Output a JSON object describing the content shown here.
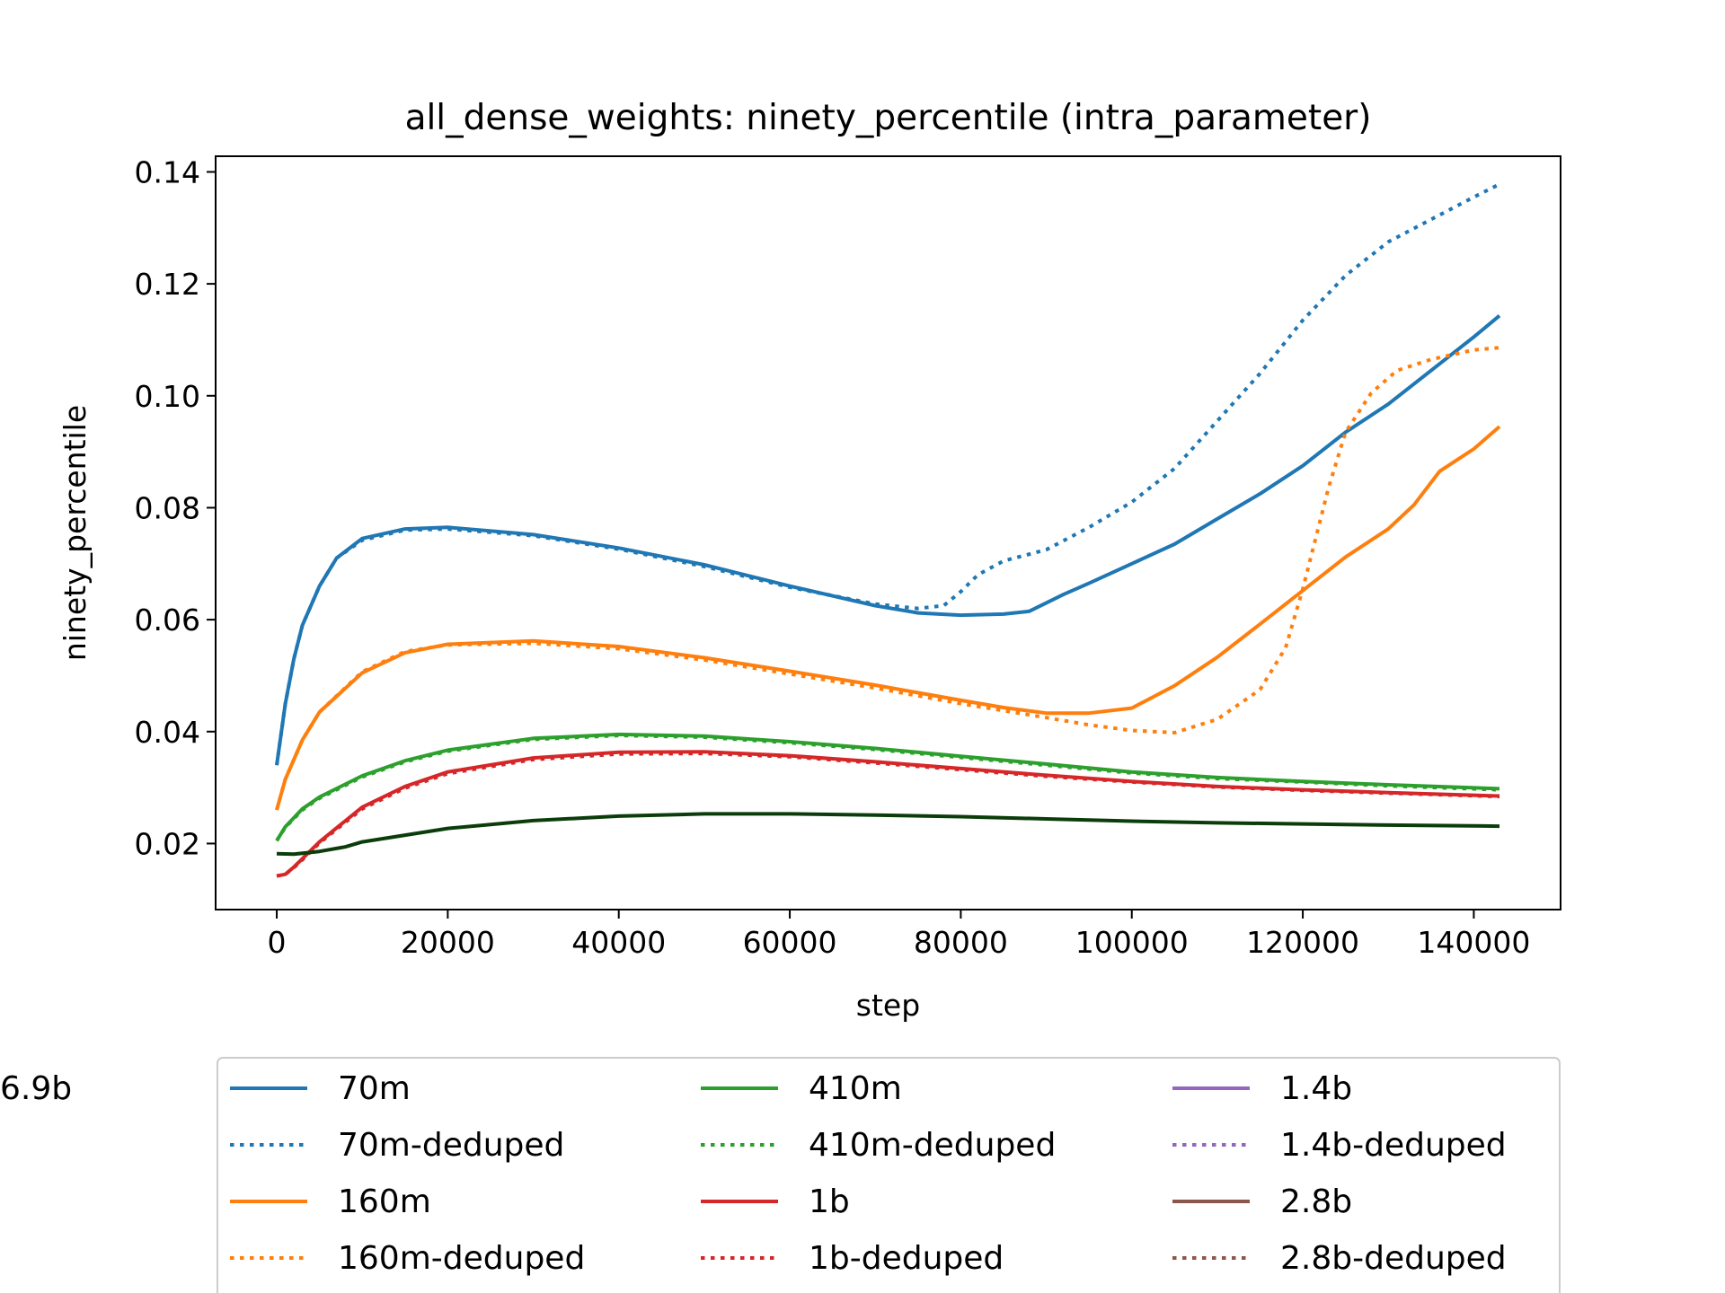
{
  "chart_data": {
    "type": "line",
    "title": "all_dense_weights: ninety_percentile (intra_parameter)",
    "xlabel": "step",
    "ylabel": "ninety_percentile",
    "xlim": [
      -7150,
      150150
    ],
    "ylim": [
      0.0082,
      0.1428
    ],
    "xticks": [
      0,
      20000,
      40000,
      60000,
      80000,
      100000,
      120000,
      140000
    ],
    "xtick_labels": [
      "0",
      "20000",
      "40000",
      "60000",
      "80000",
      "100000",
      "120000",
      "140000"
    ],
    "yticks": [
      0.02,
      0.04,
      0.06,
      0.08,
      0.1,
      0.12,
      0.14
    ],
    "ytick_labels": [
      "0.02",
      "0.04",
      "0.06",
      "0.08",
      "0.10",
      "0.12",
      "0.14"
    ],
    "grid": false,
    "legend_position": "below",
    "series": [
      {
        "name": "70m",
        "color": "#1f77b4",
        "style": "solid",
        "x": [
          0,
          1000,
          2000,
          3000,
          5000,
          7000,
          10000,
          15000,
          20000,
          30000,
          40000,
          50000,
          60000,
          70000,
          75000,
          80000,
          85000,
          88000,
          90000,
          92000,
          95000,
          100000,
          105000,
          110000,
          115000,
          120000,
          125000,
          130000,
          135000,
          140000,
          143000
        ],
        "y": [
          0.034,
          0.045,
          0.053,
          0.059,
          0.066,
          0.071,
          0.0745,
          0.0762,
          0.0765,
          0.0752,
          0.0728,
          0.0698,
          0.066,
          0.0625,
          0.0612,
          0.0608,
          0.061,
          0.0615,
          0.063,
          0.0645,
          0.0665,
          0.07,
          0.0735,
          0.078,
          0.0825,
          0.0875,
          0.0935,
          0.0985,
          0.1045,
          0.1105,
          0.1143
        ]
      },
      {
        "name": "70m-deduped",
        "color": "#1f77b4",
        "style": "dotted",
        "x": [
          0,
          1000,
          2000,
          3000,
          5000,
          7000,
          10000,
          15000,
          20000,
          30000,
          40000,
          50000,
          60000,
          70000,
          75000,
          78000,
          80000,
          82000,
          85000,
          90000,
          95000,
          100000,
          105000,
          110000,
          115000,
          120000,
          125000,
          130000,
          135000,
          140000,
          143000
        ],
        "y": [
          0.034,
          0.045,
          0.053,
          0.059,
          0.066,
          0.071,
          0.0742,
          0.076,
          0.0762,
          0.075,
          0.0726,
          0.0695,
          0.0658,
          0.0628,
          0.062,
          0.0625,
          0.065,
          0.068,
          0.0705,
          0.0725,
          0.0765,
          0.081,
          0.087,
          0.0955,
          0.104,
          0.1135,
          0.1215,
          0.1275,
          0.1315,
          0.1355,
          0.1378
        ]
      },
      {
        "name": "160m",
        "color": "#ff7f0e",
        "style": "solid",
        "x": [
          0,
          1000,
          3000,
          5000,
          10000,
          15000,
          20000,
          30000,
          40000,
          50000,
          60000,
          70000,
          80000,
          85000,
          90000,
          95000,
          100000,
          105000,
          110000,
          115000,
          120000,
          125000,
          130000,
          133000,
          136000,
          140000,
          143000
        ],
        "y": [
          0.026,
          0.0315,
          0.0385,
          0.0435,
          0.0505,
          0.0541,
          0.0556,
          0.0562,
          0.0552,
          0.0532,
          0.0508,
          0.0483,
          0.0456,
          0.0443,
          0.0433,
          0.0433,
          0.0442,
          0.0482,
          0.0533,
          0.0592,
          0.0652,
          0.0712,
          0.0762,
          0.0805,
          0.0865,
          0.0905,
          0.0945
        ]
      },
      {
        "name": "160m-deduped",
        "color": "#ff7f0e",
        "style": "dotted",
        "x": [
          0,
          1000,
          3000,
          5000,
          10000,
          15000,
          20000,
          30000,
          40000,
          50000,
          60000,
          70000,
          80000,
          90000,
          95000,
          100000,
          105000,
          110000,
          115000,
          118000,
          120000,
          123000,
          125000,
          128000,
          131000,
          135000,
          140000,
          143000
        ],
        "y": [
          0.026,
          0.0315,
          0.0385,
          0.0435,
          0.0507,
          0.0543,
          0.0555,
          0.0558,
          0.0548,
          0.0528,
          0.0503,
          0.0478,
          0.045,
          0.0425,
          0.0412,
          0.0402,
          0.0398,
          0.0422,
          0.0475,
          0.055,
          0.0655,
          0.0835,
          0.0935,
          0.1005,
          0.1045,
          0.1065,
          0.1082,
          0.1086
        ]
      },
      {
        "name": "410m",
        "color": "#2ca02c",
        "style": "solid",
        "x": [
          0,
          1000,
          3000,
          5000,
          10000,
          15000,
          20000,
          30000,
          40000,
          50000,
          60000,
          70000,
          80000,
          90000,
          100000,
          110000,
          120000,
          130000,
          143000
        ],
        "y": [
          0.0205,
          0.023,
          0.0262,
          0.0283,
          0.0321,
          0.0348,
          0.0367,
          0.0388,
          0.0395,
          0.0392,
          0.0382,
          0.037,
          0.0356,
          0.0342,
          0.0328,
          0.0318,
          0.0311,
          0.0305,
          0.0298
        ]
      },
      {
        "name": "410m-deduped",
        "color": "#2ca02c",
        "style": "dotted",
        "x": [
          0,
          1000,
          3000,
          5000,
          10000,
          15000,
          20000,
          30000,
          40000,
          50000,
          60000,
          70000,
          80000,
          90000,
          100000,
          110000,
          120000,
          130000,
          143000
        ],
        "y": [
          0.0205,
          0.0229,
          0.026,
          0.0281,
          0.0319,
          0.0346,
          0.0365,
          0.0386,
          0.0393,
          0.039,
          0.038,
          0.0368,
          0.0354,
          0.034,
          0.0326,
          0.0316,
          0.031,
          0.0303,
          0.0296
        ]
      },
      {
        "name": "1b",
        "color": "#d62728",
        "style": "solid",
        "x": [
          0,
          1000,
          2000,
          3000,
          5000,
          10000,
          15000,
          20000,
          30000,
          40000,
          50000,
          60000,
          70000,
          80000,
          90000,
          100000,
          110000,
          120000,
          130000,
          143000
        ],
        "y": [
          0.0142,
          0.0145,
          0.0158,
          0.0173,
          0.0203,
          0.0265,
          0.0302,
          0.0328,
          0.0353,
          0.0363,
          0.0364,
          0.0357,
          0.0346,
          0.0334,
          0.0322,
          0.0311,
          0.0302,
          0.0296,
          0.0291,
          0.0285
        ]
      },
      {
        "name": "1b-deduped",
        "color": "#d62728",
        "style": "dotted",
        "x": [
          0,
          1000,
          2000,
          3000,
          5000,
          10000,
          15000,
          20000,
          30000,
          40000,
          50000,
          60000,
          70000,
          80000,
          90000,
          100000,
          110000,
          120000,
          130000,
          143000
        ],
        "y": [
          0.0142,
          0.0145,
          0.0157,
          0.0171,
          0.0201,
          0.0262,
          0.0299,
          0.0325,
          0.035,
          0.036,
          0.0361,
          0.0355,
          0.0344,
          0.0332,
          0.032,
          0.031,
          0.0301,
          0.0295,
          0.029,
          0.0284
        ]
      },
      {
        "name": "1.4b",
        "color": "#9467bd",
        "style": "solid",
        "x": [],
        "y": []
      },
      {
        "name": "1.4b-deduped",
        "color": "#9467bd",
        "style": "dotted",
        "x": [],
        "y": []
      },
      {
        "name": "2.8b",
        "color": "#8c564b",
        "style": "solid",
        "x": [],
        "y": []
      },
      {
        "name": "2.8b-deduped",
        "color": "#8c564b",
        "style": "dotted",
        "x": [],
        "y": []
      },
      {
        "name": "6.9b",
        "color": "#0b3d0b",
        "style": "solid",
        "x": [
          0,
          2000,
          5000,
          8000,
          10000,
          15000,
          20000,
          30000,
          40000,
          50000,
          60000,
          70000,
          80000,
          90000,
          100000,
          110000,
          120000,
          130000,
          143000
        ],
        "y": [
          0.0182,
          0.0181,
          0.0186,
          0.0194,
          0.0203,
          0.0215,
          0.0227,
          0.0241,
          0.0249,
          0.0253,
          0.0253,
          0.0251,
          0.0248,
          0.0244,
          0.024,
          0.0237,
          0.0235,
          0.0233,
          0.0231
        ]
      }
    ]
  }
}
